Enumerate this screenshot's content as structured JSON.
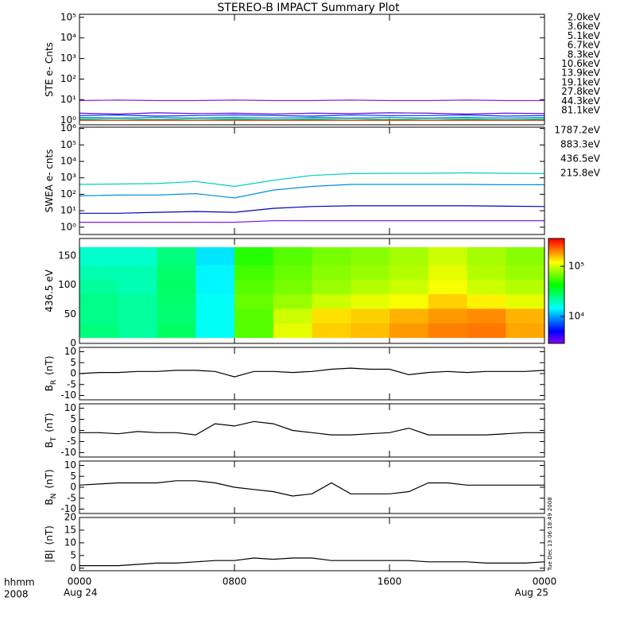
{
  "title": "STEREO-B IMPACT Summary Plot",
  "x_axis": {
    "xlim": [
      0,
      24
    ],
    "xticks": [
      {
        "value": 0,
        "label": "0000"
      },
      {
        "value": 8,
        "label": "0800"
      },
      {
        "value": 16,
        "label": "1600"
      },
      {
        "value": 24,
        "label": "0000"
      }
    ],
    "dates": [
      {
        "value": 0,
        "label": "Aug 24"
      },
      {
        "value": 24,
        "label": "Aug 25"
      }
    ],
    "row_label": "hhmm",
    "year": "2008"
  },
  "stamp": "Tue Dec 13 06:18:49 2008",
  "chart_data": [
    {
      "type": "line",
      "ylabel": "STE e- Cnts",
      "log_scale": true,
      "ylim": [
        0.6,
        140000
      ],
      "yticks": [
        {
          "value": 1,
          "label": "10⁰"
        },
        {
          "value": 10,
          "label": "10¹"
        },
        {
          "value": 100,
          "label": "10²"
        },
        {
          "value": 1000,
          "label": "10³"
        },
        {
          "value": 10000,
          "label": "10⁴"
        },
        {
          "value": 100000,
          "label": "10⁵"
        }
      ],
      "x": [
        0,
        2,
        4,
        6,
        8,
        10,
        12,
        14,
        16,
        18,
        20,
        22,
        24
      ],
      "series": [
        {
          "name": "2.0keV",
          "color": "#9020e0",
          "values": [
            9,
            9.5,
            9,
            9,
            9.5,
            9,
            9,
            9.5,
            9,
            9,
            9.5,
            9,
            9
          ]
        },
        {
          "name": "3.6keV",
          "color": "#5a10d0",
          "values": [
            2.2,
            2,
            2.3,
            2.1,
            2.2,
            2,
            2.2,
            2.1,
            2.3,
            2.2,
            2,
            2.2,
            2.1
          ]
        },
        {
          "name": "5.1keV",
          "color": "#2030f0",
          "values": [
            1.7,
            1.8,
            1.6,
            1.7,
            1.8,
            1.7,
            1.6,
            1.8,
            1.7,
            1.7,
            1.8,
            1.6,
            1.7
          ]
        },
        {
          "name": "6.7keV",
          "color": "#0090e0",
          "values": [
            1.4,
            1.3,
            1.4,
            1.3,
            1.4,
            1.3,
            1.4,
            1.3,
            1.4,
            1.3,
            1.4,
            1.3,
            1.4
          ]
        },
        {
          "name": "8.3keV",
          "color": "#00d0c0",
          "values": [
            1.2,
            1.2,
            1.1,
            1.2,
            1.2,
            1.1,
            1.2,
            1.2,
            1.1,
            1.2,
            1.2,
            1.1,
            1.2
          ]
        },
        {
          "name": "10.6keV",
          "color": "#00c070",
          "values": [
            1.1,
            1,
            1.1,
            1,
            1.1,
            1,
            1.1,
            1,
            1.1,
            1,
            1.1,
            1,
            1.1
          ]
        },
        {
          "name": "13.9keV",
          "color": "#30c020",
          "values": [
            1,
            1,
            1,
            1,
            1,
            1,
            1,
            1,
            1,
            1,
            1,
            1,
            1
          ]
        },
        {
          "name": "19.1keV",
          "color": "#b0d000",
          "values": [
            1,
            1,
            1,
            1,
            1,
            1,
            1,
            1,
            1,
            1,
            1,
            1,
            1
          ]
        },
        {
          "name": "27.8keV",
          "color": "#f0c000",
          "values": [
            1,
            1,
            1,
            1,
            1,
            1,
            1,
            1,
            1,
            1,
            1,
            1,
            1
          ]
        },
        {
          "name": "44.3keV",
          "color": "#f09000",
          "values": [
            1,
            1,
            1,
            1,
            1,
            1,
            1,
            1,
            1,
            1,
            1,
            1,
            1
          ]
        },
        {
          "name": "81.1keV",
          "color": "#e03000",
          "values": [
            1,
            1,
            1,
            1,
            1,
            1,
            1,
            1,
            1,
            1,
            1,
            1,
            1
          ]
        }
      ]
    },
    {
      "type": "line",
      "ylabel": "SWEA e- cnts",
      "log_scale": true,
      "ylim": [
        0.36,
        1200000
      ],
      "yticks": [
        {
          "value": 1,
          "label": "10⁰"
        },
        {
          "value": 10,
          "label": "10¹"
        },
        {
          "value": 100,
          "label": "10²"
        },
        {
          "value": 1000,
          "label": "10³"
        },
        {
          "value": 10000,
          "label": "10⁴"
        },
        {
          "value": 100000,
          "label": "10⁵"
        },
        {
          "value": 1000000,
          "label": "10⁶"
        }
      ],
      "x": [
        0,
        2,
        4,
        6,
        8,
        10,
        12,
        14,
        16,
        18,
        20,
        22,
        24
      ],
      "series": [
        {
          "name": "1787.2eV",
          "color": "#8020e0",
          "values": [
            2,
            2,
            2,
            2,
            2,
            2.5,
            2.5,
            2.5,
            2.5,
            2.5,
            2.5,
            2.5,
            2.5
          ]
        },
        {
          "name": "883.3eV",
          "color": "#0000c0",
          "values": [
            7,
            7,
            8,
            9,
            8,
            14,
            18,
            20,
            20,
            20,
            20,
            19,
            18
          ]
        },
        {
          "name": "436.5eV",
          "color": "#0090e0",
          "values": [
            80,
            90,
            90,
            110,
            60,
            180,
            300,
            400,
            400,
            400,
            400,
            380,
            380
          ]
        },
        {
          "name": "215.8eV",
          "color": "#00d0c0",
          "values": [
            400,
            420,
            450,
            600,
            300,
            700,
            1400,
            1800,
            1900,
            1900,
            2000,
            1900,
            1800
          ]
        }
      ]
    },
    {
      "type": "heatmap",
      "ylabel": "436.5 eV",
      "ylim": [
        0,
        180
      ],
      "yticks": [
        0,
        50,
        100,
        150
      ],
      "xbins": [
        0,
        2,
        4,
        6,
        8,
        10,
        12,
        14,
        16,
        18,
        20,
        22,
        24
      ],
      "ybins": [
        10,
        35,
        60,
        85,
        110,
        135,
        165
      ],
      "zlim": [
        2900,
        360000
      ],
      "zticks": [
        {
          "value": 10000,
          "label": "10⁴"
        },
        {
          "value": 100000,
          "label": "10⁵"
        }
      ],
      "values": [
        [
          25000,
          22000,
          28000,
          15000,
          60000,
          110000,
          150000,
          160000,
          190000,
          210000,
          220000,
          180000
        ],
        [
          24000,
          22000,
          26000,
          15000,
          60000,
          100000,
          140000,
          150000,
          170000,
          190000,
          200000,
          170000
        ],
        [
          24000,
          22000,
          27000,
          15000,
          65000,
          80000,
          100000,
          110000,
          120000,
          150000,
          130000,
          110000
        ],
        [
          22000,
          20000,
          28000,
          14000,
          60000,
          70000,
          80000,
          90000,
          100000,
          120000,
          100000,
          90000
        ],
        [
          20000,
          20000,
          27000,
          14000,
          55000,
          65000,
          75000,
          80000,
          90000,
          110000,
          90000,
          80000
        ],
        [
          18000,
          18000,
          25000,
          13000,
          50000,
          60000,
          70000,
          75000,
          85000,
          100000,
          85000,
          75000
        ]
      ]
    },
    {
      "type": "line",
      "ylabel": "B",
      "ylabel_sub": "R",
      "ylabel_unit": "(nT)",
      "ylim": [
        -12,
        12
      ],
      "yticks": [
        -10,
        -5,
        0,
        5,
        10
      ],
      "x": [
        0,
        1,
        2,
        3,
        4,
        5,
        6,
        7,
        8,
        9,
        10,
        11,
        12,
        13,
        14,
        15,
        16,
        17,
        18,
        19,
        20,
        21,
        22,
        23,
        24
      ],
      "series": [
        {
          "color": "#000000",
          "values": [
            0,
            0.5,
            0.5,
            1,
            1,
            1.5,
            1.5,
            1,
            -1.5,
            1,
            1,
            0.5,
            1,
            2,
            2.5,
            2,
            2,
            -0.5,
            0.5,
            1,
            0.5,
            1,
            1,
            1,
            1.5
          ]
        }
      ]
    },
    {
      "type": "line",
      "ylabel": "B",
      "ylabel_sub": "T",
      "ylabel_unit": "(nT)",
      "ylim": [
        -12,
        12
      ],
      "yticks": [
        -10,
        -5,
        0,
        5,
        10
      ],
      "x": [
        0,
        1,
        2,
        3,
        4,
        5,
        6,
        7,
        8,
        9,
        10,
        11,
        12,
        13,
        14,
        15,
        16,
        17,
        18,
        19,
        20,
        21,
        22,
        23,
        24
      ],
      "series": [
        {
          "color": "#000000",
          "values": [
            -1,
            -1,
            -1.5,
            -0.5,
            -1,
            -1,
            -2,
            3,
            2,
            4,
            3,
            0,
            -1,
            -2,
            -2,
            -1.5,
            -1,
            1,
            -2,
            -2,
            -2,
            -2,
            -1.5,
            -1,
            -1
          ]
        }
      ]
    },
    {
      "type": "line",
      "ylabel": "B",
      "ylabel_sub": "N",
      "ylabel_unit": "(nT)",
      "ylim": [
        -12,
        12
      ],
      "yticks": [
        -10,
        -5,
        0,
        5,
        10
      ],
      "x": [
        0,
        1,
        2,
        3,
        4,
        5,
        6,
        7,
        8,
        9,
        10,
        11,
        12,
        13,
        14,
        15,
        16,
        17,
        18,
        19,
        20,
        21,
        22,
        23,
        24
      ],
      "series": [
        {
          "color": "#000000",
          "values": [
            1,
            1.5,
            2,
            2,
            2,
            3,
            3,
            2,
            0,
            -1,
            -2,
            -4,
            -3,
            2,
            -3,
            -3,
            -3,
            -2,
            2,
            2,
            1,
            1,
            1,
            1,
            1
          ]
        }
      ]
    },
    {
      "type": "line",
      "ylabel": "|B|",
      "ylabel_unit": "(nT)",
      "ylim": [
        -1,
        20
      ],
      "yticks": [
        0,
        5,
        10,
        15,
        20
      ],
      "x": [
        0,
        1,
        2,
        3,
        4,
        5,
        6,
        7,
        8,
        9,
        10,
        11,
        12,
        13,
        14,
        15,
        16,
        17,
        18,
        19,
        20,
        21,
        22,
        23,
        24
      ],
      "series": [
        {
          "color": "#000000",
          "values": [
            1,
            1,
            1,
            1.5,
            2,
            2,
            2.5,
            3,
            3,
            4,
            3.5,
            4,
            4,
            3,
            3,
            3,
            3,
            3,
            2.5,
            2.5,
            2.5,
            2,
            2,
            2,
            2.5
          ]
        }
      ]
    }
  ]
}
